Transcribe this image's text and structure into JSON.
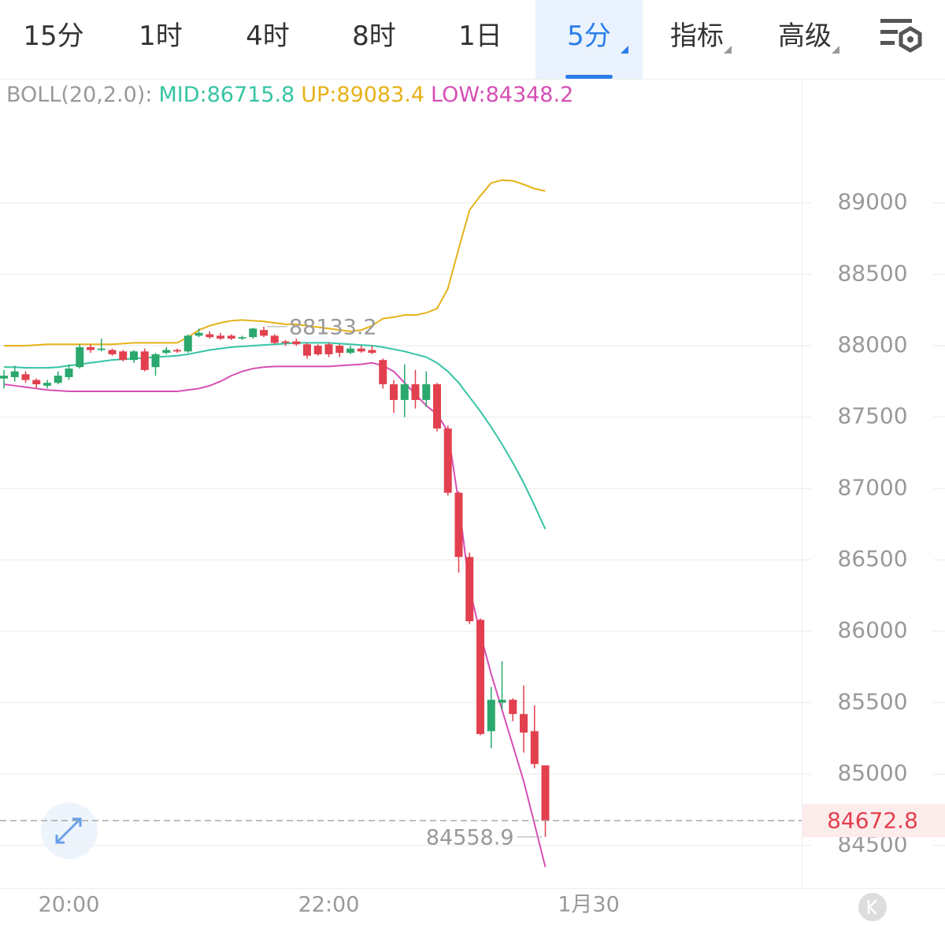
{
  "tabs": [
    "15分",
    "1时",
    "4时",
    "8时",
    "1日",
    "5分",
    "指标",
    "高级"
  ],
  "active_tab": "5分",
  "chart_data": {
    "type": "candlestick",
    "indicator": "BOLL(20,2.0):",
    "categories": [
      null,
      null,
      null,
      null,
      null,
      null,
      "20:00",
      null,
      null,
      null,
      null,
      null,
      null,
      null,
      null,
      null,
      null,
      null,
      null,
      null,
      null,
      null,
      null,
      null,
      null,
      null,
      null,
      null,
      null,
      null,
      "22:00",
      null,
      null,
      null,
      null,
      null,
      null,
      null,
      null,
      null,
      null,
      null,
      null,
      null,
      null,
      null,
      null,
      null,
      null,
      null,
      null,
      null,
      null,
      null,
      "1月30"
    ],
    "candles": {
      "open": [
        87770,
        87780,
        87800,
        87760,
        87720,
        87740,
        87780,
        87850,
        87990,
        87970,
        87970,
        87960,
        87900,
        87960,
        87850,
        87950,
        87970,
        87960,
        88070,
        88080,
        88070,
        88070,
        88050,
        88060,
        88110,
        88070,
        88030,
        88030,
        88010,
        88000,
        88010,
        88000,
        87950,
        87980,
        87970,
        87900,
        87730,
        87620,
        87730,
        87620,
        87730,
        87420,
        86970,
        86520,
        86080,
        85300,
        85500,
        85520,
        85420,
        85300,
        85060,
        null,
        null,
        null,
        null
      ],
      "high": [
        87830,
        87860,
        87820,
        87770,
        87760,
        87820,
        87870,
        88010,
        88010,
        88050,
        87980,
        87970,
        87970,
        87980,
        87950,
        87990,
        87980,
        88080,
        88120,
        88100,
        88090,
        88080,
        88070,
        88125,
        88133.2,
        88080,
        88040,
        88050,
        88020,
        88010,
        88020,
        88010,
        88000,
        88000,
        88000,
        87910,
        87760,
        87870,
        87830,
        87820,
        87740,
        87440,
        86980,
        86550,
        86090,
        85610,
        85790,
        85530,
        85620,
        85480,
        85060,
        null,
        null,
        null,
        null
      ],
      "low": [
        87700,
        87750,
        87740,
        87700,
        87700,
        87730,
        87760,
        87840,
        87950,
        87960,
        87930,
        87890,
        87880,
        87820,
        87790,
        87940,
        87950,
        87950,
        88060,
        88050,
        88040,
        88040,
        88040,
        88050,
        88060,
        88010,
        88000,
        88000,
        87910,
        87930,
        87920,
        87920,
        87940,
        87950,
        87940,
        87700,
        87530,
        87500,
        87560,
        87570,
        87400,
        86950,
        86410,
        86050,
        85270,
        85180,
        85450,
        85370,
        85150,
        85040,
        84558.9,
        null,
        null,
        null,
        null
      ],
      "close": [
        87790,
        87820,
        87760,
        87730,
        87740,
        87790,
        87840,
        87990,
        87970,
        87980,
        87940,
        87900,
        87960,
        87830,
        87940,
        87970,
        87960,
        88070,
        88090,
        88060,
        88050,
        88050,
        88060,
        88120,
        88070,
        88020,
        88020,
        88010,
        87930,
        87940,
        87940,
        87950,
        87980,
        87960,
        87950,
        87730,
        87620,
        87730,
        87620,
        87730,
        87420,
        86970,
        86520,
        86070,
        85280,
        85520,
        85520,
        85420,
        85290,
        85070,
        84672.8,
        null,
        null,
        null,
        null
      ]
    },
    "up_color": "#2aa86d",
    "down_color": "#e2404e",
    "series": [
      {
        "name": "MID",
        "label": "MID:86715.8",
        "color": "#35c4a4",
        "values": [
          87850,
          87850,
          87845,
          87845,
          87845,
          87850,
          87860,
          87870,
          87880,
          87890,
          87900,
          87905,
          87910,
          87915,
          87920,
          87925,
          87930,
          87940,
          87955,
          87970,
          87980,
          87990,
          87995,
          88000,
          88005,
          88010,
          88015,
          88020,
          88020,
          88020,
          88020,
          88015,
          88010,
          88005,
          88000,
          87990,
          87975,
          87960,
          87940,
          87920,
          87880,
          87820,
          87740,
          87640,
          87540,
          87430,
          87310,
          87180,
          87040,
          86880,
          86715.8,
          null,
          null,
          null,
          null
        ]
      },
      {
        "name": "UP",
        "label": "UP:89083.4",
        "color": "#e6b219",
        "values": [
          88000,
          88000,
          88000,
          88005,
          88010,
          88010,
          88010,
          88010,
          88010,
          88010,
          88010,
          88015,
          88020,
          88020,
          88020,
          88020,
          88020,
          88060,
          88110,
          88140,
          88160,
          88175,
          88180,
          88175,
          88170,
          88160,
          88150,
          88150,
          88140,
          88130,
          88120,
          88110,
          88100,
          88110,
          88140,
          88190,
          88200,
          88215,
          88215,
          88230,
          88260,
          88400,
          88680,
          88950,
          89050,
          89140,
          89160,
          89155,
          89130,
          89100,
          89083.4,
          null,
          null,
          null,
          null
        ]
      },
      {
        "name": "LOW",
        "label": "LOW:84348.2",
        "color": "#d64fb4",
        "values": [
          87730,
          87720,
          87710,
          87700,
          87690,
          87685,
          87680,
          87680,
          87680,
          87680,
          87680,
          87680,
          87680,
          87680,
          87680,
          87680,
          87680,
          87690,
          87700,
          87720,
          87750,
          87790,
          87820,
          87840,
          87850,
          87855,
          87855,
          87855,
          87855,
          87855,
          87855,
          87860,
          87865,
          87870,
          87880,
          87860,
          87820,
          87740,
          87660,
          87580,
          87520,
          87400,
          86900,
          86300,
          85980,
          85700,
          85450,
          85200,
          84950,
          84650,
          84348.2,
          null,
          null,
          null,
          null
        ]
      }
    ],
    "ylim": [
      84200,
      89870
    ],
    "yticks": [
      84500,
      85000,
      85500,
      86000,
      86500,
      87000,
      87500,
      88000,
      88500,
      89000
    ],
    "grid": true
  }
}
